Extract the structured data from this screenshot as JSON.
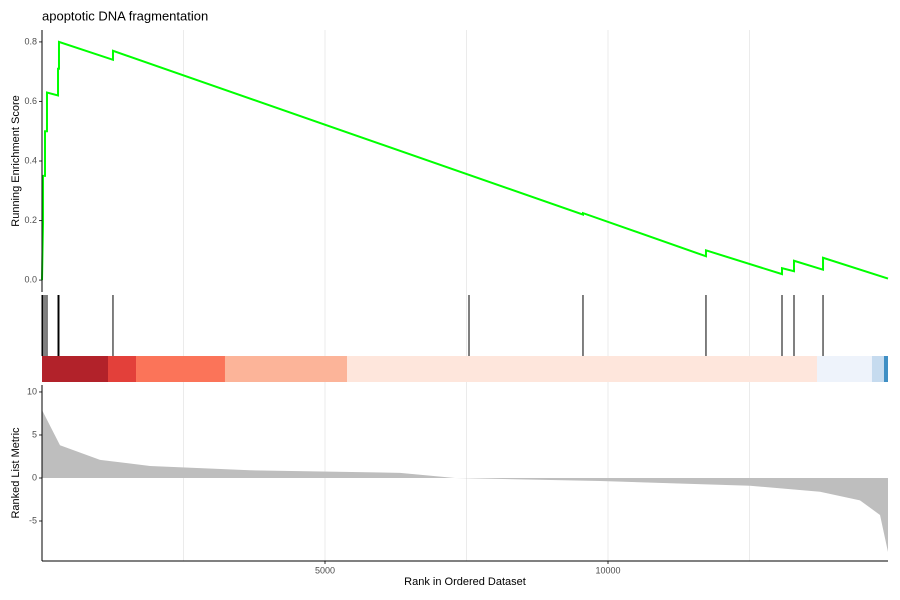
{
  "chart_data": [
    {
      "type": "line",
      "title": "apoptotic DNA fragmentation",
      "ylabel": "Running Enrichment Score",
      "xlim": [
        0,
        14947
      ],
      "ylim": [
        -0.04,
        0.84
      ],
      "yticks": [
        {
          "value": 0,
          "label": "0.0"
        },
        0.2,
        0.4,
        0.6,
        0.8
      ],
      "xgrid": [
        2500,
        5000,
        7500,
        10000,
        12500
      ],
      "grid": true,
      "series": [
        {
          "color": "#00ff00",
          "x": [
            0,
            18,
            18,
            53,
            53,
            88,
            88,
            283,
            283,
            300,
            300,
            1254,
            1254,
            9558,
            9558,
            11731,
            11731,
            13074,
            13074,
            13286,
            13286,
            13799,
            13799,
            14947
          ],
          "values": [
            0,
            0.19,
            0.35,
            0.35,
            0.5,
            0.5,
            0.63,
            0.62,
            0.71,
            0.71,
            0.8,
            0.74,
            0.77,
            0.22,
            0.225,
            0.08,
            0.1,
            0.02,
            0.04,
            0.03,
            0.065,
            0.035,
            0.075,
            0.005
          ]
        }
      ]
    },
    {
      "type": "rug",
      "xlim": [
        0,
        14947
      ],
      "xgrid": [
        2500,
        5000,
        7500,
        10000,
        12500
      ],
      "hits": [
        0,
        18,
        53,
        88,
        283,
        300,
        1254,
        7544,
        9558,
        11731,
        13074,
        13286,
        13799
      ],
      "hit_color": "#000000",
      "bin_edges": [
        0,
        1166,
        1661,
        3233,
        5389,
        13693,
        14664,
        14876,
        14947
      ],
      "bin_colors": [
        "#b2222a",
        "#e3403a",
        "#fb7459",
        "#fcb499",
        "#fee6dc",
        "#eef3fb",
        "#c6dbef",
        "#3f8fc4"
      ]
    },
    {
      "type": "area",
      "xlabel": "Rank in Ordered Dataset",
      "ylabel": "Ranked List Metric",
      "xlim": [
        0,
        14947
      ],
      "ylim": [
        -9.65,
        10.81
      ],
      "xticks": [
        5000,
        10000
      ],
      "yticks": [
        -5,
        0,
        5,
        10
      ],
      "xgrid": [
        2500,
        5000,
        7500,
        10000,
        12500
      ],
      "grid": true,
      "color": "#bebebe",
      "x": [
        0,
        318,
        1025,
        1908,
        3675,
        6325,
        7297,
        9859,
        12509,
        13746,
        14452,
        14806,
        14947
      ],
      "values": [
        7.9,
        3.8,
        2.1,
        1.4,
        0.9,
        0.6,
        0,
        -0.35,
        -0.9,
        -1.6,
        -2.6,
        -4.3,
        -8.6
      ]
    }
  ]
}
